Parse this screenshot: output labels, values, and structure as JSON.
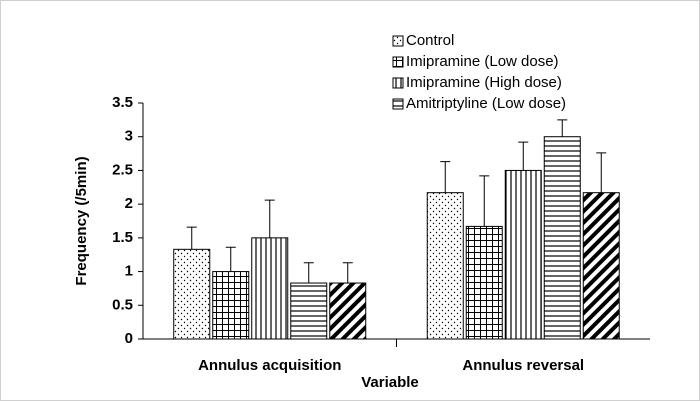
{
  "chart_data": {
    "type": "bar",
    "x_label": "Variable",
    "y_label": "Frequency (/5min)",
    "categories": [
      "Annulus acquisition",
      "Annulus reversal"
    ],
    "series": [
      {
        "name": "Control",
        "color": "#000000",
        "pattern": "dots",
        "values": [
          1.33,
          2.17
        ],
        "errors": [
          0.33,
          0.46
        ]
      },
      {
        "name": "Imipramine (Low dose)",
        "color": "#000000",
        "pattern": "grid",
        "values": [
          1.0,
          1.67
        ],
        "errors": [
          0.36,
          0.75
        ]
      },
      {
        "name": "Imipramine (High dose)",
        "color": "#000000",
        "pattern": "vertical",
        "values": [
          1.5,
          2.5
        ],
        "errors": [
          0.56,
          0.42
        ]
      },
      {
        "name": "Amitriptyline (Low dose)",
        "color": "#000000",
        "pattern": "horizontal",
        "values": [
          0.83,
          3.0
        ],
        "errors": [
          0.3,
          0.25
        ]
      },
      {
        "name": null,
        "color": "#000000",
        "pattern": "diagonal",
        "values": [
          0.83,
          2.17
        ],
        "errors": [
          0.3,
          0.59
        ]
      }
    ],
    "ylim": [
      0,
      3.5
    ],
    "yticks": [
      0,
      0.5,
      1,
      1.5,
      2,
      2.5,
      3,
      3.5
    ],
    "grid": false,
    "legend": "top"
  }
}
